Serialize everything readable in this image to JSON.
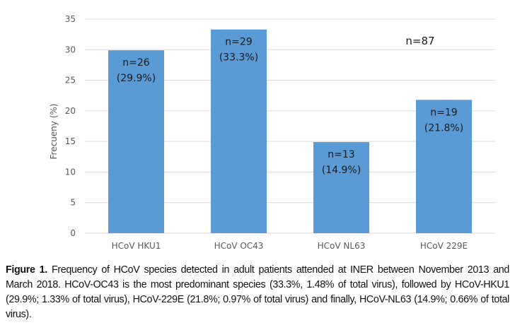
{
  "chart_data": {
    "type": "bar",
    "categories": [
      "HCoV HKU1",
      "HCoV OC43",
      "HCoV NL63",
      "HCoV 229E"
    ],
    "values": [
      29.9,
      33.3,
      14.9,
      21.8
    ],
    "bar_labels": [
      [
        "n=26",
        "(29.9%)"
      ],
      [
        "n=29",
        "(33.3%)"
      ],
      [
        "n=13",
        "(14.9%)"
      ],
      [
        "n=19",
        "(21.8%)"
      ]
    ],
    "ylabel": "Frecueny (%)",
    "ylim": [
      0,
      35
    ],
    "yticks": [
      "0",
      "5",
      "10",
      "15",
      "20",
      "25",
      "30",
      "35"
    ],
    "grid": true,
    "bar_color": "#5B9BD5",
    "grid_color": "#D9D9D9",
    "annotation": "n=87"
  },
  "caption": {
    "lead": "Figure 1.",
    "text": " Frequency of HCoV species detected in adult patients attended at INER between November 2013 and March 2018. HCoV-OC43 is the most predominant species (33.3%, 1.48% of total virus), followed by HCoV-HKU1 (29.9%; 1.33% of total virus), HCoV-229E (21.8%; 0.97% of total virus) and finally, HCoV-NL63 (14.9%; 0.66% of total virus)."
  }
}
